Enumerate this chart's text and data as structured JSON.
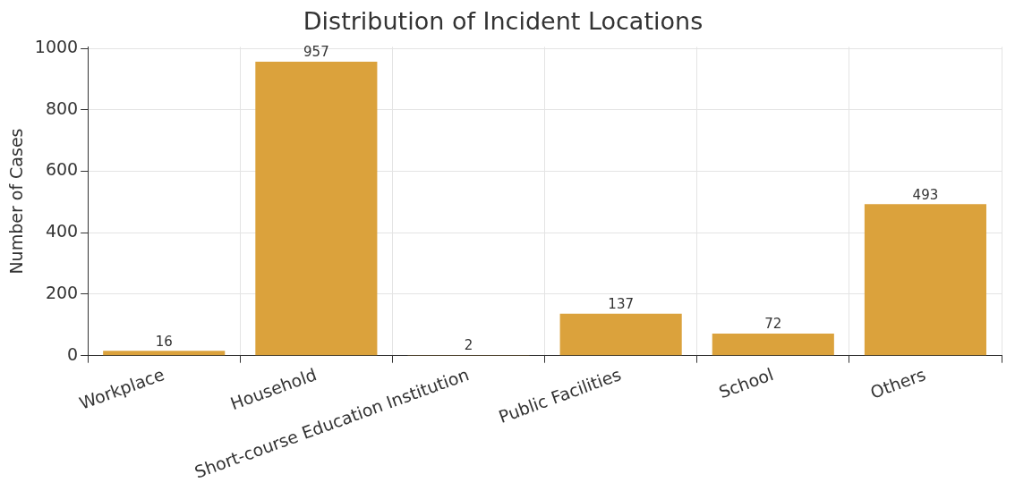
{
  "chart_data": {
    "type": "bar",
    "title": "Distribution of Incident Locations",
    "ylabel": "Number of Cases",
    "categories": [
      "Workplace",
      "Household",
      "Short-course Education Institution",
      "Public Facilities",
      "School",
      "Others"
    ],
    "values": [
      16,
      957,
      2,
      137,
      72,
      493
    ],
    "color": "#dba23c",
    "ylim": [
      0,
      1005
    ],
    "yticks": [
      0,
      200,
      400,
      600,
      800,
      1000
    ],
    "grid": true,
    "data_labels": true
  }
}
